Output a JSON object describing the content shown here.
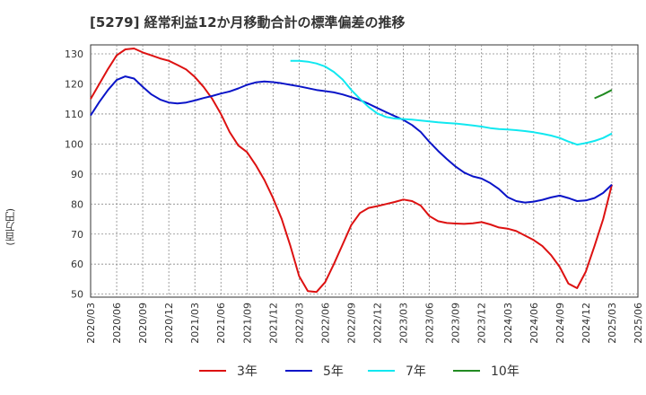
{
  "chart_data": {
    "type": "line",
    "title": "[5279]  経常利益12か月移動合計の標準偏差の推移",
    "ylabel": "(百万円)",
    "xlabel": "",
    "ylim": [
      49,
      133
    ],
    "yticks": [
      50,
      60,
      70,
      80,
      90,
      100,
      110,
      120,
      130
    ],
    "x_ticks": [
      "2020/03",
      "2020/06",
      "2020/09",
      "2020/12",
      "2021/03",
      "2021/06",
      "2021/09",
      "2021/12",
      "2022/03",
      "2022/06",
      "2022/09",
      "2022/12",
      "2023/03",
      "2023/06",
      "2023/09",
      "2023/12",
      "2024/03",
      "2024/06",
      "2024/09",
      "2024/12",
      "2025/03",
      "2025/06"
    ],
    "grid": true,
    "legend_position": "bottom",
    "series": [
      {
        "name": "3年",
        "color": "#dd1111",
        "points": [
          [
            "2020/03",
            115
          ],
          [
            "2020/04",
            120
          ],
          [
            "2020/05",
            125
          ],
          [
            "2020/06",
            129.5
          ],
          [
            "2020/07",
            131.5
          ],
          [
            "2020/08",
            131.8
          ],
          [
            "2020/09",
            130.5
          ],
          [
            "2020/10",
            129.5
          ],
          [
            "2020/11",
            128.5
          ],
          [
            "2020/12",
            127.7
          ],
          [
            "2021/01",
            126.3
          ],
          [
            "2021/02",
            124.8
          ],
          [
            "2021/03",
            122.3
          ],
          [
            "2021/04",
            119
          ],
          [
            "2021/05",
            115
          ],
          [
            "2021/06",
            110
          ],
          [
            "2021/07",
            104
          ],
          [
            "2021/08",
            99.5
          ],
          [
            "2021/09",
            97.3
          ],
          [
            "2021/10",
            93
          ],
          [
            "2021/11",
            88
          ],
          [
            "2021/12",
            82
          ],
          [
            "2022/01",
            75
          ],
          [
            "2022/02",
            66
          ],
          [
            "2022/03",
            56
          ],
          [
            "2022/04",
            51
          ],
          [
            "2022/05",
            50.7
          ],
          [
            "2022/06",
            54
          ],
          [
            "2022/07",
            60
          ],
          [
            "2022/08",
            66.5
          ],
          [
            "2022/09",
            73
          ],
          [
            "2022/10",
            77
          ],
          [
            "2022/11",
            78.7
          ],
          [
            "2022/12",
            79.3
          ],
          [
            "2023/01",
            80
          ],
          [
            "2023/02",
            80.7
          ],
          [
            "2023/03",
            81.5
          ],
          [
            "2023/04",
            81
          ],
          [
            "2023/05",
            79.5
          ],
          [
            "2023/06",
            76
          ],
          [
            "2023/07",
            74.3
          ],
          [
            "2023/08",
            73.7
          ],
          [
            "2023/09",
            73.5
          ],
          [
            "2023/10",
            73.4
          ],
          [
            "2023/11",
            73.6
          ],
          [
            "2023/12",
            74
          ],
          [
            "2024/01",
            73.2
          ],
          [
            "2024/02",
            72.2
          ],
          [
            "2024/03",
            71.8
          ],
          [
            "2024/04",
            71
          ],
          [
            "2024/05",
            69.5
          ],
          [
            "2024/06",
            68
          ],
          [
            "2024/07",
            66
          ],
          [
            "2024/08",
            63
          ],
          [
            "2024/09",
            59
          ],
          [
            "2024/10",
            53.5
          ],
          [
            "2024/11",
            52
          ],
          [
            "2024/12",
            57.5
          ],
          [
            "2025/01",
            66
          ],
          [
            "2025/02",
            75
          ],
          [
            "2025/03",
            86.5
          ]
        ]
      },
      {
        "name": "5年",
        "color": "#0a14c8",
        "points": [
          [
            "2020/03",
            109.5
          ],
          [
            "2020/04",
            114
          ],
          [
            "2020/05",
            118
          ],
          [
            "2020/06",
            121.3
          ],
          [
            "2020/07",
            122.5
          ],
          [
            "2020/08",
            121.8
          ],
          [
            "2020/09",
            119
          ],
          [
            "2020/10",
            116.5
          ],
          [
            "2020/11",
            114.8
          ],
          [
            "2020/12",
            113.8
          ],
          [
            "2021/01",
            113.5
          ],
          [
            "2021/02",
            113.8
          ],
          [
            "2021/03",
            114.5
          ],
          [
            "2021/04",
            115.3
          ],
          [
            "2021/05",
            116
          ],
          [
            "2021/06",
            116.8
          ],
          [
            "2021/07",
            117.5
          ],
          [
            "2021/08",
            118.5
          ],
          [
            "2021/09",
            119.7
          ],
          [
            "2021/10",
            120.5
          ],
          [
            "2021/11",
            120.8
          ],
          [
            "2021/12",
            120.6
          ],
          [
            "2022/01",
            120.2
          ],
          [
            "2022/02",
            119.7
          ],
          [
            "2022/03",
            119.2
          ],
          [
            "2022/04",
            118.6
          ],
          [
            "2022/05",
            118
          ],
          [
            "2022/06",
            117.6
          ],
          [
            "2022/07",
            117.2
          ],
          [
            "2022/08",
            116.5
          ],
          [
            "2022/09",
            115.6
          ],
          [
            "2022/10",
            114.6
          ],
          [
            "2022/11",
            113.4
          ],
          [
            "2022/12",
            112
          ],
          [
            "2023/01",
            110.6
          ],
          [
            "2023/02",
            109.3
          ],
          [
            "2023/03",
            108
          ],
          [
            "2023/04",
            106.3
          ],
          [
            "2023/05",
            104
          ],
          [
            "2023/06",
            100.7
          ],
          [
            "2023/07",
            97.7
          ],
          [
            "2023/08",
            95
          ],
          [
            "2023/09",
            92.5
          ],
          [
            "2023/10",
            90.5
          ],
          [
            "2023/11",
            89.2
          ],
          [
            "2023/12",
            88.5
          ],
          [
            "2024/01",
            87
          ],
          [
            "2024/02",
            85
          ],
          [
            "2024/03",
            82.3
          ],
          [
            "2024/04",
            81
          ],
          [
            "2024/05",
            80.5
          ],
          [
            "2024/06",
            80.8
          ],
          [
            "2024/07",
            81.4
          ],
          [
            "2024/08",
            82.2
          ],
          [
            "2024/09",
            82.8
          ],
          [
            "2024/10",
            82
          ],
          [
            "2024/11",
            81
          ],
          [
            "2024/12",
            81.2
          ],
          [
            "2025/01",
            82
          ],
          [
            "2025/02",
            83.7
          ],
          [
            "2025/03",
            86.5
          ]
        ]
      },
      {
        "name": "7年",
        "color": "#11e8f0",
        "points": [
          [
            "2022/02",
            127.7
          ],
          [
            "2022/03",
            127.7
          ],
          [
            "2022/04",
            127.4
          ],
          [
            "2022/05",
            126.8
          ],
          [
            "2022/06",
            125.8
          ],
          [
            "2022/07",
            124
          ],
          [
            "2022/08",
            121.5
          ],
          [
            "2022/09",
            118
          ],
          [
            "2022/10",
            115
          ],
          [
            "2022/11",
            112.3
          ],
          [
            "2022/12",
            110.2
          ],
          [
            "2023/01",
            109
          ],
          [
            "2023/02",
            108.5
          ],
          [
            "2023/03",
            108.3
          ],
          [
            "2023/04",
            108.1
          ],
          [
            "2023/05",
            107.8
          ],
          [
            "2023/06",
            107.5
          ],
          [
            "2023/07",
            107.2
          ],
          [
            "2023/08",
            107
          ],
          [
            "2023/09",
            106.8
          ],
          [
            "2023/10",
            106.5
          ],
          [
            "2023/11",
            106.2
          ],
          [
            "2023/12",
            105.8
          ],
          [
            "2024/01",
            105.3
          ],
          [
            "2024/02",
            105
          ],
          [
            "2024/03",
            104.8
          ],
          [
            "2024/04",
            104.6
          ],
          [
            "2024/05",
            104.3
          ],
          [
            "2024/06",
            103.9
          ],
          [
            "2024/07",
            103.4
          ],
          [
            "2024/08",
            102.8
          ],
          [
            "2024/09",
            102
          ],
          [
            "2024/10",
            100.8
          ],
          [
            "2024/11",
            99.8
          ],
          [
            "2024/12",
            100.3
          ],
          [
            "2025/01",
            101
          ],
          [
            "2025/02",
            102
          ],
          [
            "2025/03",
            103.5
          ]
        ]
      },
      {
        "name": "10年",
        "color": "#228b22",
        "points": [
          [
            "2025/01",
            115.2
          ],
          [
            "2025/02",
            116.5
          ],
          [
            "2025/03",
            118
          ]
        ]
      }
    ]
  }
}
